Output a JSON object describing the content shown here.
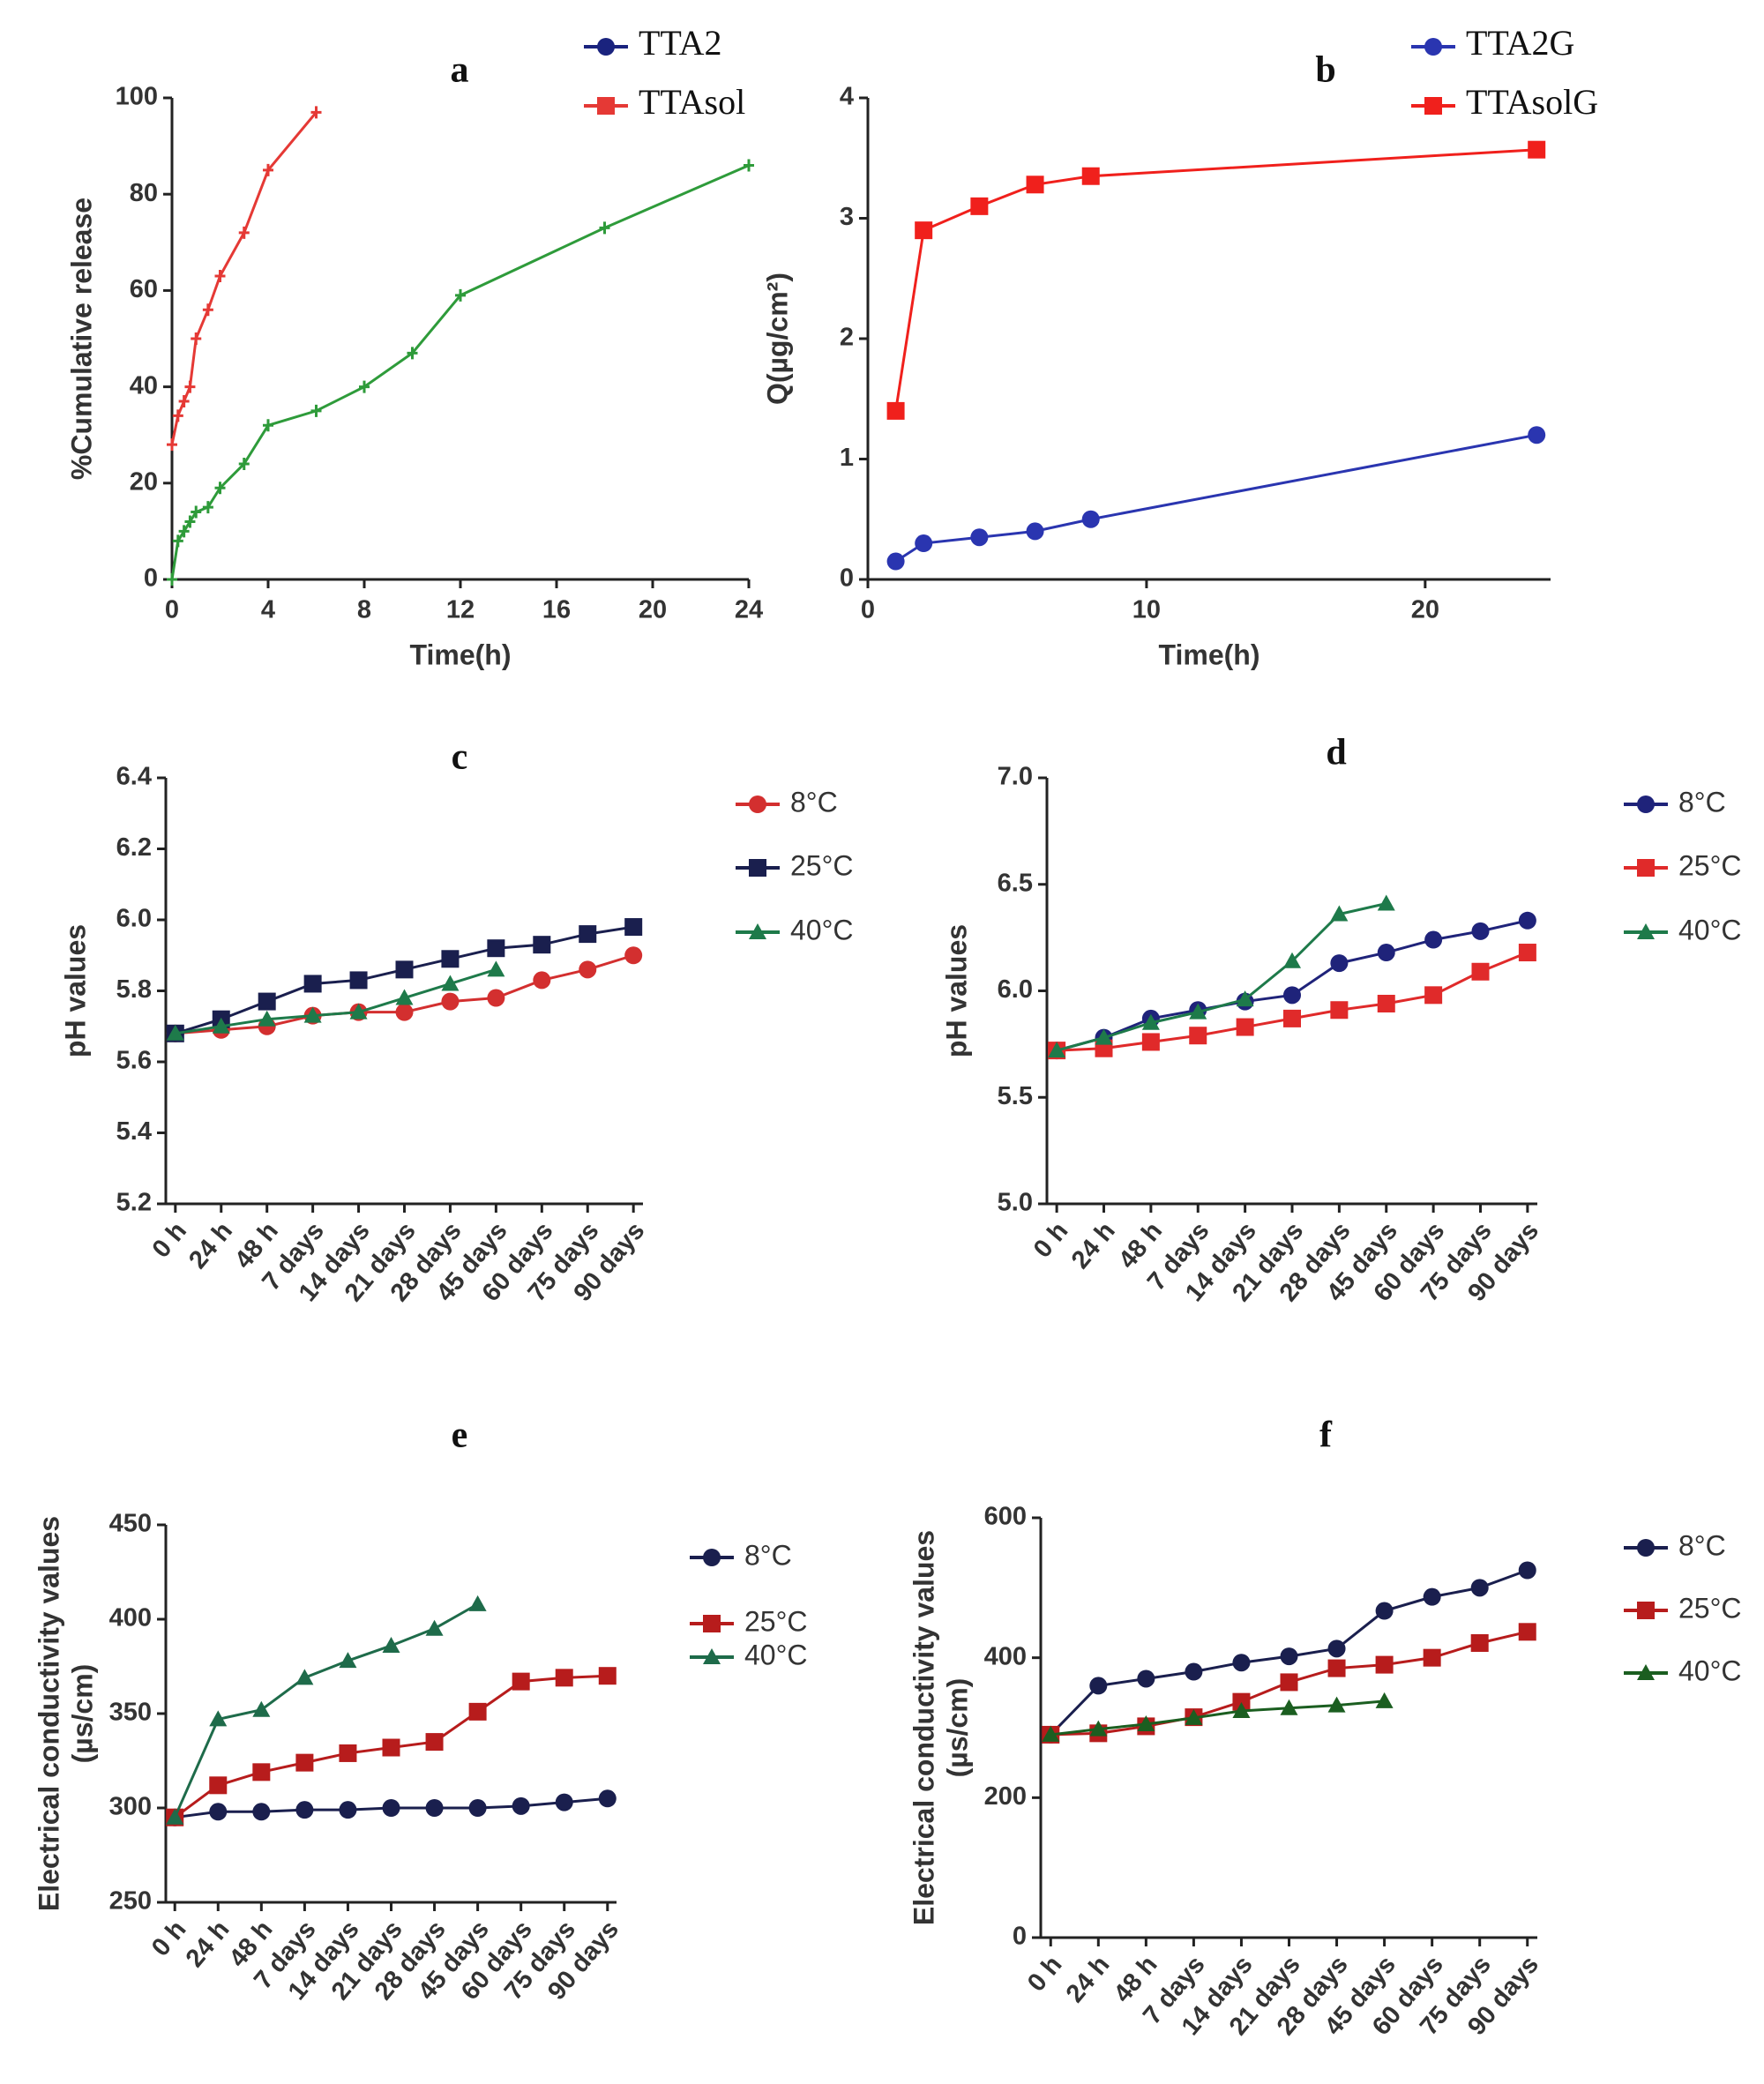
{
  "chart_data": [
    {
      "type": "line",
      "title": "a",
      "xlabel": "Time(h)",
      "ylabel": "%Cumulative release",
      "xlim": [
        0,
        24
      ],
      "xticks": [
        0,
        4,
        8,
        12,
        16,
        20,
        24
      ],
      "ylim": [
        0,
        100
      ],
      "yticks": [
        0,
        20,
        40,
        60,
        80,
        100
      ],
      "series": [
        {
          "name": "TTA2",
          "color": "#2e9b3a",
          "legend_color": "#1a237e",
          "marker": "plus",
          "x": [
            0,
            0.25,
            0.5,
            0.75,
            1,
            1.5,
            2,
            3,
            4,
            6,
            8,
            10,
            12,
            18,
            24
          ],
          "values": [
            0,
            8,
            10,
            12,
            14,
            15,
            19,
            24,
            32,
            35,
            40,
            47,
            59,
            73,
            86
          ]
        },
        {
          "name": "TTAsol",
          "color": "#e53935",
          "legend_color": "#e53935",
          "marker": "plus",
          "x": [
            0,
            0.25,
            0.5,
            0.75,
            1,
            1.5,
            2,
            3,
            4,
            6
          ],
          "values": [
            28,
            34,
            37,
            40,
            50,
            56,
            63,
            72,
            85,
            97
          ]
        }
      ]
    },
    {
      "type": "line",
      "title": "b",
      "xlabel": "Time(h)",
      "ylabel": "Q(µg/cm²)",
      "xlim": [
        0,
        24.5
      ],
      "xticks": [
        0,
        10,
        20
      ],
      "ylim": [
        0,
        4
      ],
      "yticks": [
        0,
        1,
        2,
        3,
        4
      ],
      "series": [
        {
          "name": "TTA2G",
          "color": "#2a35b0",
          "marker": "circle",
          "x": [
            1,
            2,
            4,
            6,
            8,
            24
          ],
          "values": [
            0.15,
            0.3,
            0.35,
            0.4,
            0.5,
            1.2
          ]
        },
        {
          "name": "TTAsolG",
          "color": "#f0201c",
          "marker": "square",
          "x": [
            1,
            2,
            4,
            6,
            8,
            24
          ],
          "values": [
            1.4,
            2.9,
            3.1,
            3.28,
            3.35,
            3.57
          ]
        }
      ]
    },
    {
      "type": "line",
      "title": "c",
      "ylabel": "pH values",
      "categories": [
        "0 h",
        "24 h",
        "48 h",
        "7 days",
        "14 days",
        "21 days",
        "28 days",
        "45 days",
        "60 days",
        "75 days",
        "90 days"
      ],
      "ylim": [
        5.2,
        6.4
      ],
      "yticks": [
        5.2,
        5.4,
        5.6,
        5.8,
        {
          "value": 6,
          "label": "6.0"
        },
        6.2,
        6.4
      ],
      "series": [
        {
          "name": "8°C",
          "color": "#d32f2f",
          "marker": "circle",
          "values": [
            5.68,
            5.69,
            5.7,
            5.73,
            5.74,
            5.74,
            5.77,
            5.78,
            5.83,
            5.86,
            5.9
          ]
        },
        {
          "name": "25°C",
          "color": "#1a1f4e",
          "marker": "square",
          "values": [
            5.68,
            5.72,
            5.77,
            5.82,
            5.83,
            5.86,
            5.89,
            5.92,
            5.93,
            5.96,
            5.98
          ]
        },
        {
          "name": "40°C",
          "color": "#1e7a4a",
          "marker": "triangle",
          "values": [
            5.68,
            5.7,
            5.72,
            5.73,
            5.74,
            5.78,
            5.82,
            5.86,
            null,
            null,
            null
          ]
        }
      ]
    },
    {
      "type": "line",
      "title": "d",
      "ylabel": "pH values",
      "categories": [
        "0 h",
        "24 h",
        "48 h",
        "7 days",
        "14 days",
        "21 days",
        "28 days",
        "45 days",
        "60 days",
        "75 days",
        "90 days"
      ],
      "ylim": [
        5,
        7
      ],
      "yticks": [
        {
          "value": 5,
          "label": "5.0"
        },
        5.5,
        {
          "value": 6,
          "label": "6.0"
        },
        6.5,
        {
          "value": 7,
          "label": "7.0"
        }
      ],
      "series": [
        {
          "name": "8°C",
          "color": "#1f237a",
          "marker": "circle",
          "values": [
            5.72,
            5.78,
            5.87,
            5.91,
            5.95,
            5.98,
            6.13,
            6.18,
            6.24,
            6.28,
            6.33
          ]
        },
        {
          "name": "25°C",
          "color": "#e02a2a",
          "marker": "square",
          "values": [
            5.72,
            5.73,
            5.76,
            5.79,
            5.83,
            5.87,
            5.91,
            5.94,
            5.98,
            6.09,
            6.18
          ]
        },
        {
          "name": "40°C",
          "color": "#1e7a4a",
          "marker": "triangle",
          "values": [
            5.72,
            5.78,
            5.85,
            5.9,
            5.96,
            6.14,
            6.36,
            6.41,
            null,
            null,
            null
          ]
        }
      ]
    },
    {
      "type": "line",
      "title": "e",
      "ylabel": [
        "Electrical conductivity values",
        "(µs/cm)"
      ],
      "categories": [
        "0 h",
        "24 h",
        "48 h",
        "7 days",
        "14 days",
        "21 days",
        "28 days",
        "45 days",
        "60 days",
        "75 days",
        "90 days"
      ],
      "ylim": [
        250,
        450
      ],
      "yticks": [
        250,
        300,
        350,
        400,
        450
      ],
      "series": [
        {
          "name": "8°C",
          "color": "#1a1f4e",
          "marker": "circle",
          "values": [
            295,
            298,
            298,
            299,
            299,
            300,
            300,
            300,
            301,
            303,
            305
          ]
        },
        {
          "name": "25°C",
          "color": "#b71c1c",
          "marker": "square",
          "values": [
            295,
            312,
            319,
            324,
            329,
            332,
            335,
            351,
            367,
            369,
            370
          ]
        },
        {
          "name": "40°C",
          "color": "#1e6b4a",
          "marker": "triangle",
          "values": [
            295,
            347,
            352,
            369,
            378,
            386,
            395,
            408,
            null,
            null,
            null
          ]
        }
      ]
    },
    {
      "type": "line",
      "title": "f",
      "ylabel": [
        "Electrical conductivity values",
        "(µs/cm)"
      ],
      "categories": [
        "0 h",
        "24 h",
        "48 h",
        "7 days",
        "14 days",
        "21 days",
        "28 days",
        "45 days",
        "60 days",
        "75 days",
        "90 days"
      ],
      "ylim": [
        0,
        600
      ],
      "yticks": [
        0,
        200,
        400,
        600
      ],
      "series": [
        {
          "name": "8°C",
          "color": "#1a1f4e",
          "marker": "circle",
          "values": [
            290,
            360,
            370,
            380,
            393,
            402,
            413,
            467,
            487,
            500,
            525
          ]
        },
        {
          "name": "25°C",
          "color": "#b71c1c",
          "marker": "square",
          "values": [
            290,
            292,
            302,
            315,
            337,
            365,
            385,
            390,
            400,
            421,
            437
          ]
        },
        {
          "name": "40°C",
          "color": "#1b5e20",
          "marker": "triangle",
          "values": [
            290,
            298,
            305,
            314,
            324,
            328,
            332,
            338,
            null,
            null,
            null
          ]
        }
      ]
    }
  ]
}
